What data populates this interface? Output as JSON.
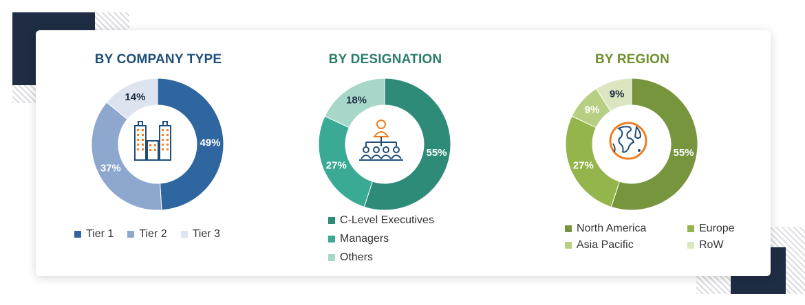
{
  "chart_data": [
    {
      "type": "pie",
      "title": "BY COMPANY TYPE",
      "categories": [
        "Tier 1",
        "Tier 2",
        "Tier 3"
      ],
      "values": [
        49,
        37,
        14
      ],
      "labels": [
        "49%",
        "37%",
        "14%"
      ],
      "colors": [
        "#2f66a0",
        "#8ea7cf",
        "#dde4ef"
      ],
      "label_colors": [
        "#ffffff",
        "#ffffff",
        "#1f2d44"
      ],
      "title_color": "#1f4e79",
      "center_icon": "buildings-icon",
      "legend_position": "bottom"
    },
    {
      "type": "pie",
      "title": "BY DESIGNATION",
      "categories": [
        "C-Level Executives",
        "Managers",
        "Others"
      ],
      "values": [
        55,
        27,
        18
      ],
      "labels": [
        "55%",
        "27%",
        "18%"
      ],
      "colors": [
        "#2e8b78",
        "#3aaa95",
        "#a7d7c9"
      ],
      "label_colors": [
        "#ffffff",
        "#ffffff",
        "#1f2d44"
      ],
      "title_color": "#2b7d6b",
      "center_icon": "org-hierarchy-icon",
      "legend_position": "bottom"
    },
    {
      "type": "pie",
      "title": "BY REGION",
      "categories": [
        "North America",
        "Europe",
        "Asia Pacific",
        "RoW"
      ],
      "values": [
        55,
        27,
        9,
        9
      ],
      "labels": [
        "55%",
        "27%",
        "9%",
        "9%"
      ],
      "colors": [
        "#76953d",
        "#94b44c",
        "#b7cf82",
        "#dbe6c0"
      ],
      "label_colors": [
        "#ffffff",
        "#ffffff",
        "#ffffff",
        "#1f2d44"
      ],
      "title_color": "#6f8f2f",
      "center_icon": "globe-icon",
      "legend_position": "bottom"
    }
  ]
}
